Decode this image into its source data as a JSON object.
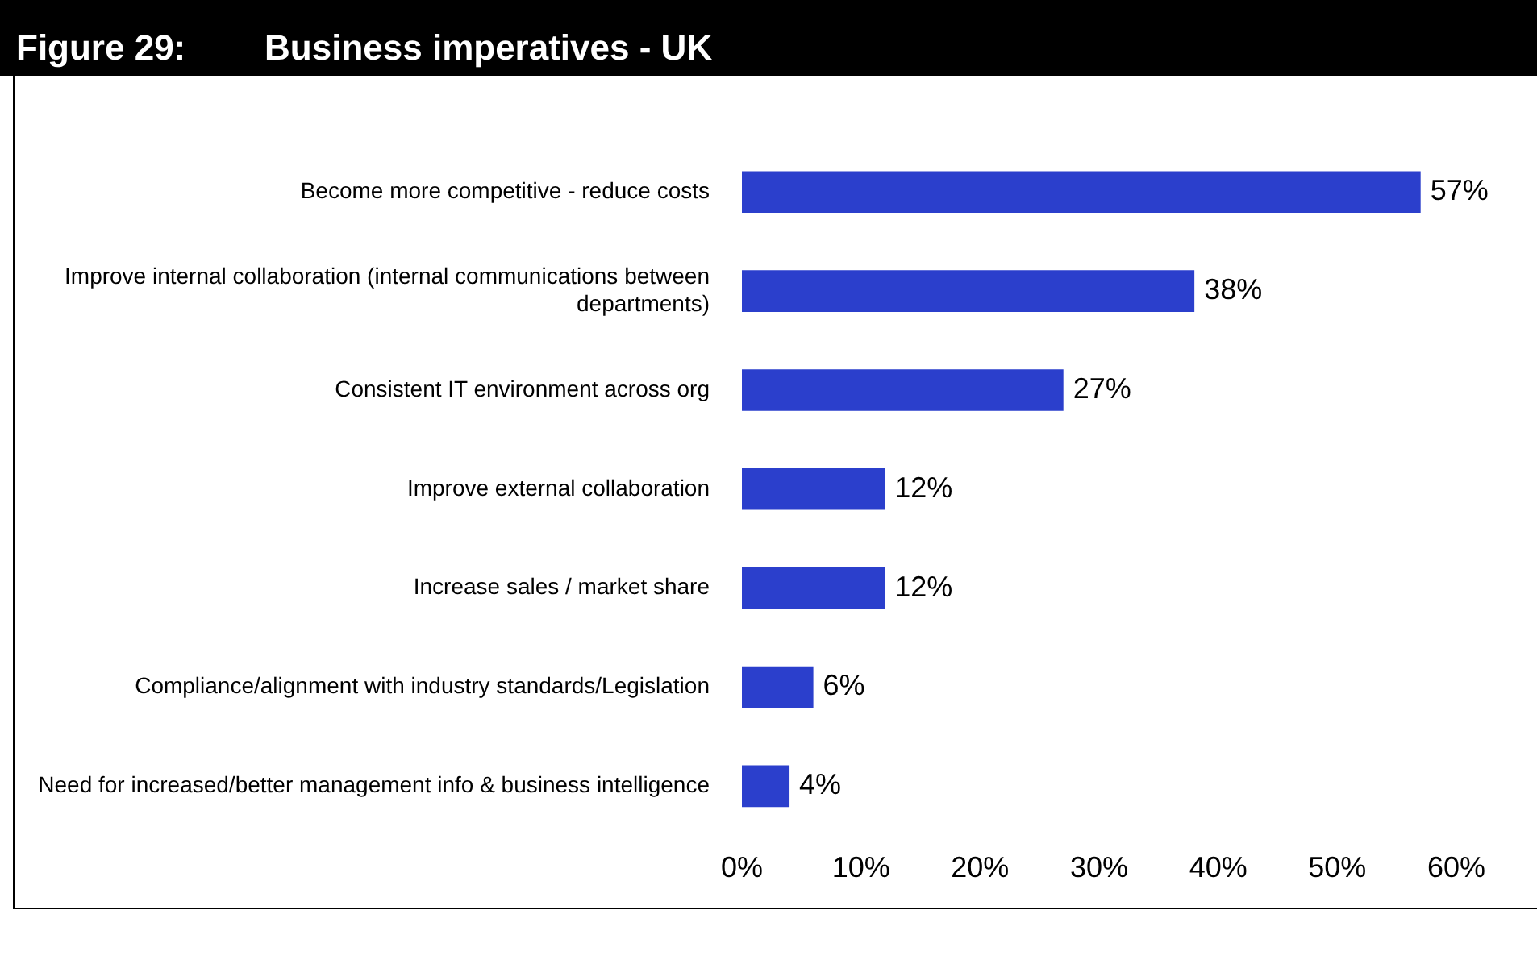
{
  "chart_data": {
    "type": "bar",
    "orientation": "horizontal",
    "title": "Figure 29:        Business imperatives - UK",
    "categories": [
      "Become more competitive - reduce costs",
      "Improve internal collaboration (internal communications between departments)",
      "Consistent IT environment across org",
      "Improve external collaboration",
      "Increase sales / market share",
      "Compliance/alignment with industry standards/Legislation",
      "Need for increased/better management info & business intelligence"
    ],
    "values": [
      57,
      38,
      27,
      12,
      12,
      6,
      4
    ],
    "value_labels": [
      "57%",
      "38%",
      "27%",
      "12%",
      "12%",
      "6%",
      "4%"
    ],
    "color": "#2b3fcc",
    "xlim": [
      0,
      60
    ],
    "xticks": [
      {
        "value": 0,
        "label": "0%"
      },
      {
        "value": 10,
        "label": "10%"
      },
      {
        "value": 20,
        "label": "20%"
      },
      {
        "value": 30,
        "label": "30%"
      },
      {
        "value": 40,
        "label": "40%"
      },
      {
        "value": 50,
        "label": "50%"
      },
      {
        "value": 60,
        "label": "60%"
      }
    ],
    "grid": false,
    "legend": false
  }
}
